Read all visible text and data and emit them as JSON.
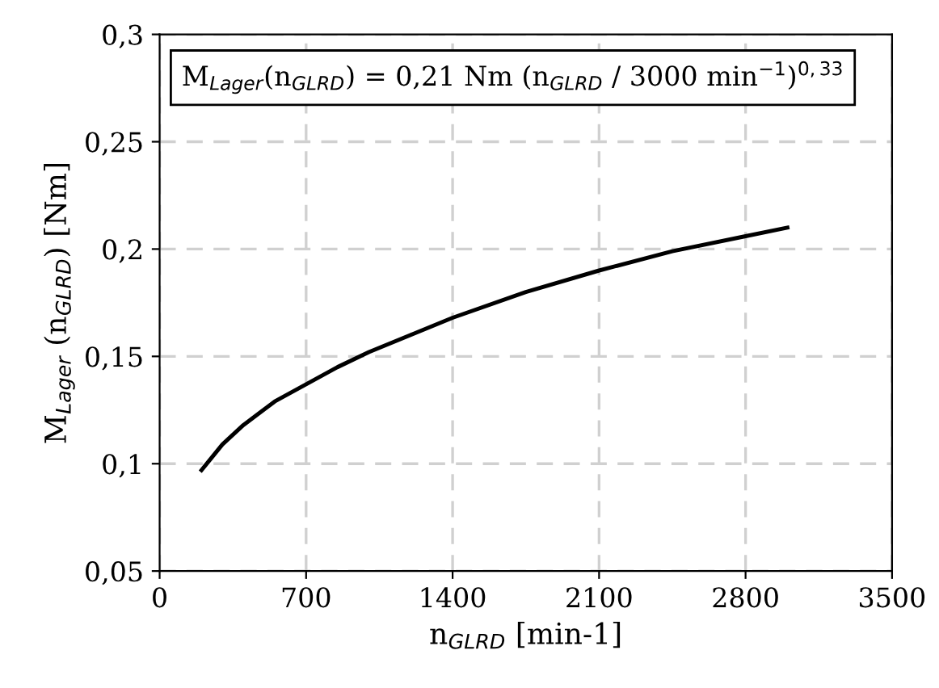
{
  "chart_data": {
    "type": "line",
    "xlabel": "n$_{GLRD}$ [min-1]",
    "ylabel": "M$_{Lager}$ (n$_{GLRD}$) [Nm]",
    "annotations": [
      "M$_{Lager}$(n$_{GLRD}$) = 0,21 Nm (n$_{GLRD}$ / 3000 min$^{−1}$)$^{0,33}$"
    ],
    "x": [
      200,
      300,
      400,
      550,
      700,
      850,
      1000,
      1200,
      1400,
      1750,
      2100,
      2450,
      2800,
      3000
    ],
    "series": [
      {
        "color": "#000000",
        "values": [
          0.097,
          0.109,
          0.118,
          0.129,
          0.137,
          0.145,
          0.152,
          0.16,
          0.168,
          0.18,
          0.19,
          0.199,
          0.206,
          0.21
        ]
      }
    ],
    "xlim": [
      0,
      3500
    ],
    "xticks": [
      0,
      700,
      1400,
      2100,
      2800,
      3500
    ],
    "ylim": [
      0.05,
      0.3
    ],
    "yticks": [
      {
        "value": 0.05,
        "label": "0,05"
      },
      {
        "value": 0.1,
        "label": "0,1"
      },
      {
        "value": 0.15,
        "label": "0,15"
      },
      {
        "value": 0.2,
        "label": "0,2"
      },
      {
        "value": 0.25,
        "label": "0,25"
      },
      {
        "value": 0.3,
        "label": "0,3"
      }
    ],
    "grid": true,
    "marker": "none",
    "line_style": "solid",
    "legend": false
  }
}
